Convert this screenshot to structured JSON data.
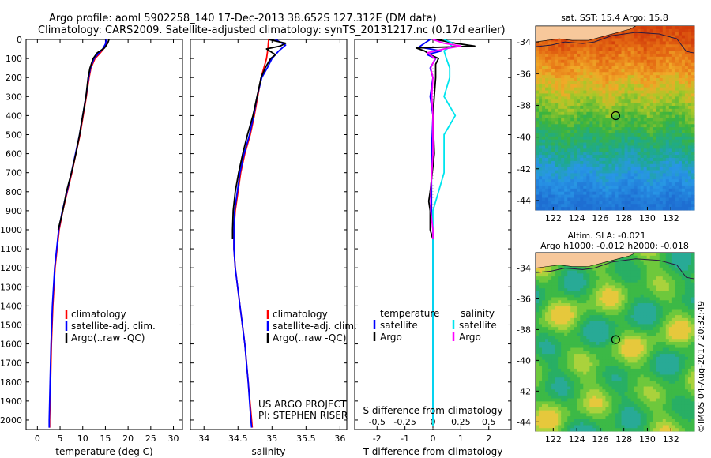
{
  "title_line1": "Argo profile: aoml 5902258_140 17-Dec-2013 38.652S 127.312E (DM data)",
  "title_line2": "Climatology: CARS2009. Satellite-adjusted climatology: synTS_20131217.nc (0.17d earlier)",
  "credit_lines": [
    "US ARGO PROJECT",
    "PI: STEPHEN RISER"
  ],
  "watermark": "©IMOS 04-Aug-2017 20:32:49",
  "colors": {
    "climatology": "#ff0000",
    "satellite": "#0000ff",
    "argo": "#000000",
    "argo_salinity_diff": "#ff00ff",
    "satellite_salinity_diff": "#00e5ee"
  },
  "chart_data": [
    {
      "type": "line",
      "name": "temperature profile",
      "xlabel": "temperature (deg C)",
      "ylabel": "",
      "xlim": [
        -2.5,
        32
      ],
      "ylim": [
        2050,
        0
      ],
      "xticks": [
        0,
        5,
        10,
        15,
        20,
        25,
        30
      ],
      "yticks": [
        0,
        100,
        200,
        300,
        400,
        500,
        600,
        700,
        800,
        900,
        1000,
        1100,
        1200,
        1300,
        1400,
        1500,
        1600,
        1700,
        1800,
        1900,
        2000
      ],
      "legend": [
        "climatology",
        "satellite-adj. clim.",
        "Argo(..raw -QC)"
      ],
      "series": [
        {
          "name": "climatology",
          "depth": [
            0,
            25,
            50,
            75,
            100,
            150,
            200,
            300,
            400,
            500,
            600,
            700,
            800,
            900,
            1000,
            1200,
            1400,
            1600,
            1800,
            2000,
            2040
          ],
          "values": [
            15.3,
            15.1,
            14.6,
            13.7,
            12.7,
            11.8,
            11.4,
            10.8,
            10.1,
            9.4,
            8.5,
            7.6,
            6.6,
            5.6,
            4.8,
            3.9,
            3.4,
            3.1,
            2.9,
            2.7,
            2.7
          ]
        },
        {
          "name": "satellite-adj. clim.",
          "depth": [
            0,
            25,
            50,
            75,
            100,
            150,
            200,
            300,
            400,
            500,
            600,
            700,
            800,
            900,
            1000,
            1200,
            1400,
            1600,
            1800,
            2000,
            2040
          ],
          "values": [
            15.2,
            15.0,
            14.4,
            13.4,
            12.5,
            11.7,
            11.3,
            10.7,
            10.0,
            9.3,
            8.4,
            7.5,
            6.5,
            5.5,
            4.7,
            3.8,
            3.3,
            3.0,
            2.8,
            2.6,
            2.6
          ]
        },
        {
          "name": "Argo(..raw -QC)",
          "depth": [
            0,
            20,
            45,
            70,
            100,
            150,
            200,
            300,
            400,
            500,
            600,
            700,
            800,
            900,
            1000
          ],
          "values": [
            15.8,
            15.5,
            14.8,
            13.2,
            12.3,
            11.6,
            11.2,
            10.7,
            10.0,
            9.3,
            8.5,
            7.5,
            6.4,
            5.6,
            4.6
          ]
        }
      ]
    },
    {
      "type": "line",
      "name": "salinity profile",
      "xlabel": "salinity",
      "ylabel": "",
      "xlim": [
        33.8,
        36.1
      ],
      "ylim": [
        2050,
        0
      ],
      "xticks": [
        34,
        34.5,
        35,
        35.5,
        36
      ],
      "xtick_labels": [
        "34",
        "34.5",
        "35",
        "35.5",
        "36"
      ],
      "legend": [
        "climatology",
        "satellite-adj. clim.",
        "Argo(..raw -QC)"
      ],
      "series": [
        {
          "name": "climatology",
          "depth": [
            0,
            50,
            100,
            150,
            200,
            300,
            400,
            500,
            600,
            700,
            800,
            900,
            1000,
            1100,
            1200,
            1400,
            1600,
            1800,
            2000,
            2040
          ],
          "values": [
            34.95,
            34.94,
            34.92,
            34.88,
            34.84,
            34.79,
            34.74,
            34.68,
            34.6,
            34.54,
            34.5,
            34.46,
            34.44,
            34.44,
            34.46,
            34.53,
            34.6,
            34.65,
            34.7,
            34.71
          ]
        },
        {
          "name": "satellite-adj. clim.",
          "depth": [
            0,
            30,
            60,
            100,
            150,
            200,
            300,
            400,
            500,
            600,
            700,
            800,
            900,
            1000,
            1100,
            1200,
            1400,
            1600,
            1800,
            2000,
            2040
          ],
          "values": [
            35.05,
            35.2,
            35.1,
            35.0,
            34.93,
            34.85,
            34.78,
            34.73,
            34.67,
            34.59,
            34.53,
            34.49,
            34.45,
            34.44,
            34.44,
            34.46,
            34.53,
            34.6,
            34.65,
            34.69,
            34.7
          ]
        },
        {
          "name": "Argo(..raw -QC)",
          "depth": [
            0,
            20,
            35,
            50,
            80,
            100,
            150,
            200,
            300,
            400,
            500,
            600,
            700,
            800,
            900,
            1000,
            1050
          ],
          "values": [
            34.95,
            35.2,
            35.12,
            34.92,
            35.05,
            34.98,
            34.9,
            34.84,
            34.78,
            34.72,
            34.64,
            34.57,
            34.51,
            34.46,
            34.43,
            34.42,
            34.42
          ]
        }
      ]
    },
    {
      "type": "line",
      "name": "difference from climatology",
      "xlabel": "T difference from climatology",
      "xlabel_top": "S difference from climatology",
      "xlim": [
        -2.8,
        2.8
      ],
      "ylim": [
        2050,
        0
      ],
      "xticks": [
        -2,
        -1,
        0,
        1,
        2
      ],
      "top_ticks": [
        -0.5,
        -0.25,
        0,
        0.25,
        0.5
      ],
      "top_tick_labels": [
        "-0.5",
        "-0.25",
        "0",
        "0.25",
        "0.5"
      ],
      "legend_headers": [
        "temperature",
        "salinity"
      ],
      "legend": [
        "satellite",
        "Argo",
        "satellite",
        "Argo"
      ],
      "series": [
        {
          "name": "T satellite",
          "depth": [
            0,
            20,
            40,
            60,
            80,
            100,
            150,
            200,
            300,
            400,
            600,
            800,
            900,
            1000,
            1200,
            1400,
            1600,
            1800,
            2000
          ],
          "values": [
            -0.1,
            -0.3,
            -0.5,
            0.3,
            -0.2,
            0.1,
            -0.1,
            0.0,
            -0.1,
            0.0,
            -0.05,
            -0.05,
            -0.05,
            0.0,
            0.0,
            0.0,
            0.0,
            0.0,
            0.0
          ]
        },
        {
          "name": "T Argo",
          "depth": [
            0,
            20,
            35,
            45,
            60,
            80,
            100,
            130,
            200,
            400,
            600,
            800,
            850,
            900,
            1000,
            1050
          ],
          "values": [
            0.1,
            0.8,
            1.5,
            -0.6,
            -0.3,
            -0.1,
            0.2,
            0.1,
            0.1,
            0.0,
            0.05,
            -0.1,
            -0.15,
            -0.1,
            -0.1,
            0.0
          ]
        },
        {
          "name": "S satellite",
          "depth": [
            0,
            20,
            40,
            60,
            100,
            150,
            200,
            300,
            400,
            500,
            700,
            800,
            900,
            1000,
            1200,
            1600,
            2000,
            2030
          ],
          "values": [
            0.1,
            0.18,
            0.15,
            0.1,
            0.12,
            0.15,
            0.15,
            0.1,
            0.2,
            0.1,
            0.1,
            0.05,
            0.0,
            0.0,
            0.0,
            0.0,
            0.0,
            0.0
          ]
        },
        {
          "name": "S Argo",
          "depth": [
            0,
            20,
            35,
            50,
            70,
            100,
            150,
            200,
            300,
            400,
            600,
            800,
            900,
            1000,
            1050
          ],
          "values": [
            0.0,
            0.1,
            0.25,
            0.1,
            -0.05,
            0.02,
            -0.02,
            0.0,
            -0.01,
            0.0,
            0.0,
            -0.02,
            -0.02,
            0.0,
            0.0
          ]
        }
      ]
    },
    {
      "type": "heatmap",
      "name": "SST map",
      "title": "sat. SST: 15.4  Argo: 15.8",
      "xlim": [
        120.5,
        134
      ],
      "ylim": [
        -44.6,
        -33
      ],
      "xticks": [
        122,
        124,
        126,
        128,
        130,
        132
      ],
      "yticks": [
        -34,
        -36,
        -38,
        -40,
        -42,
        -44
      ],
      "marker": {
        "lon": 127.312,
        "lat": -38.652
      }
    },
    {
      "type": "heatmap",
      "name": "SLA map",
      "title_line1": "Altim. SLA: -0.021",
      "title_line2": "Argo h1000: -0.012  h2000: -0.018",
      "xlim": [
        120.5,
        134
      ],
      "ylim": [
        -44.6,
        -33
      ],
      "xticks": [
        122,
        124,
        126,
        128,
        130,
        132
      ],
      "yticks": [
        -34,
        -36,
        -38,
        -40,
        -42,
        -44
      ],
      "marker": {
        "lon": 127.312,
        "lat": -38.652
      }
    }
  ]
}
